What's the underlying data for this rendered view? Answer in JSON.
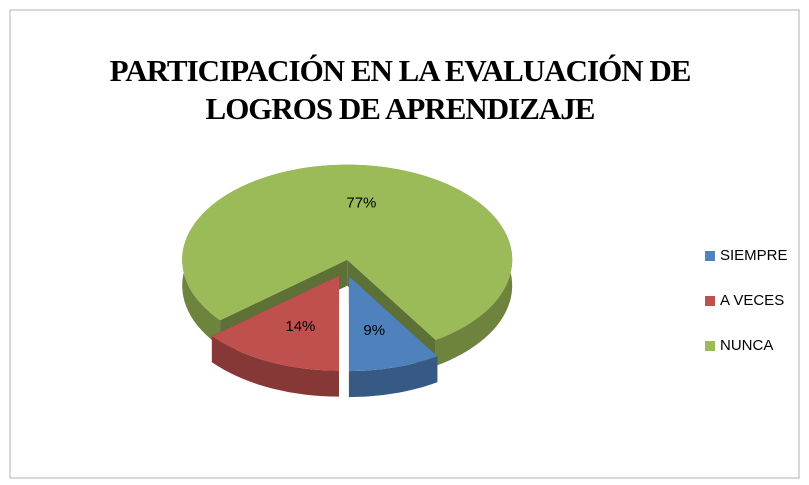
{
  "chart_data": {
    "type": "pie",
    "title": "PARTICIPACIÓN EN LA EVALUACIÓN DE LOGROS DE APRENDIZAJE",
    "categories": [
      "SIEMPRE",
      "A VECES",
      "NUNCA"
    ],
    "values": [
      9,
      14,
      77
    ],
    "value_labels": [
      "9%",
      "14%",
      "77%"
    ],
    "colors": [
      "#4f81bd",
      "#c0504d",
      "#9bbb59"
    ],
    "legend": "right"
  }
}
